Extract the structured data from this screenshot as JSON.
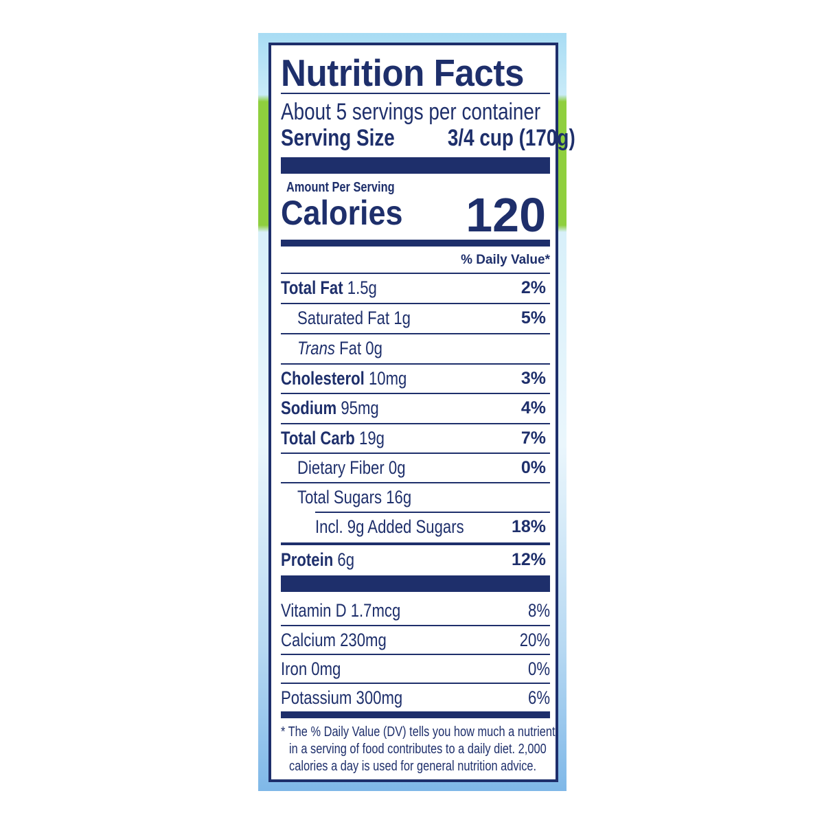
{
  "title": "Nutrition Facts",
  "servings_per_container": "About 5 servings per container",
  "serving_size": {
    "label": "Serving Size",
    "value": "3/4 cup (170g)"
  },
  "amount_per_serving": "Amount Per Serving",
  "calories": {
    "label": "Calories",
    "value": "120"
  },
  "daily_value_header": "% Daily Value*",
  "nutrients": [
    {
      "name": "Total Fat",
      "amount": "1.5g",
      "dv": "2%"
    },
    {
      "name": "Saturated Fat",
      "amount": "1g",
      "dv": "5%"
    },
    {
      "name": "Trans",
      "name_rest": "Fat",
      "amount": "0g",
      "dv": ""
    },
    {
      "name": "Cholesterol",
      "amount": "10mg",
      "dv": "3%"
    },
    {
      "name": "Sodium",
      "amount": "95mg",
      "dv": "4%"
    },
    {
      "name": "Total Carb",
      "amount": "19g",
      "dv": "7%"
    },
    {
      "name": "Dietary Fiber",
      "amount": "0g",
      "dv": "0%"
    },
    {
      "name": "Total Sugars",
      "amount": "16g",
      "dv": ""
    },
    {
      "name": "Incl. 9g Added Sugars",
      "amount": "",
      "dv": "18%"
    },
    {
      "name": "Protein",
      "amount": "6g",
      "dv": "12%"
    }
  ],
  "vitamins": [
    {
      "label": "Vitamin D 1.7mcg",
      "dv": "8%"
    },
    {
      "label": "Calcium 230mg",
      "dv": "20%"
    },
    {
      "label": "Iron 0mg",
      "dv": "0%"
    },
    {
      "label": "Potassium 300mg",
      "dv": "6%"
    }
  ],
  "footnote": [
    "* The % Daily Value (DV) tells you how much a nutrient",
    "in a serving of food contributes to a daily diet. 2,000",
    "calories a day is used for general nutrition advice."
  ],
  "colors": {
    "text": "#1e2f6b",
    "panel": "#ffffff"
  }
}
